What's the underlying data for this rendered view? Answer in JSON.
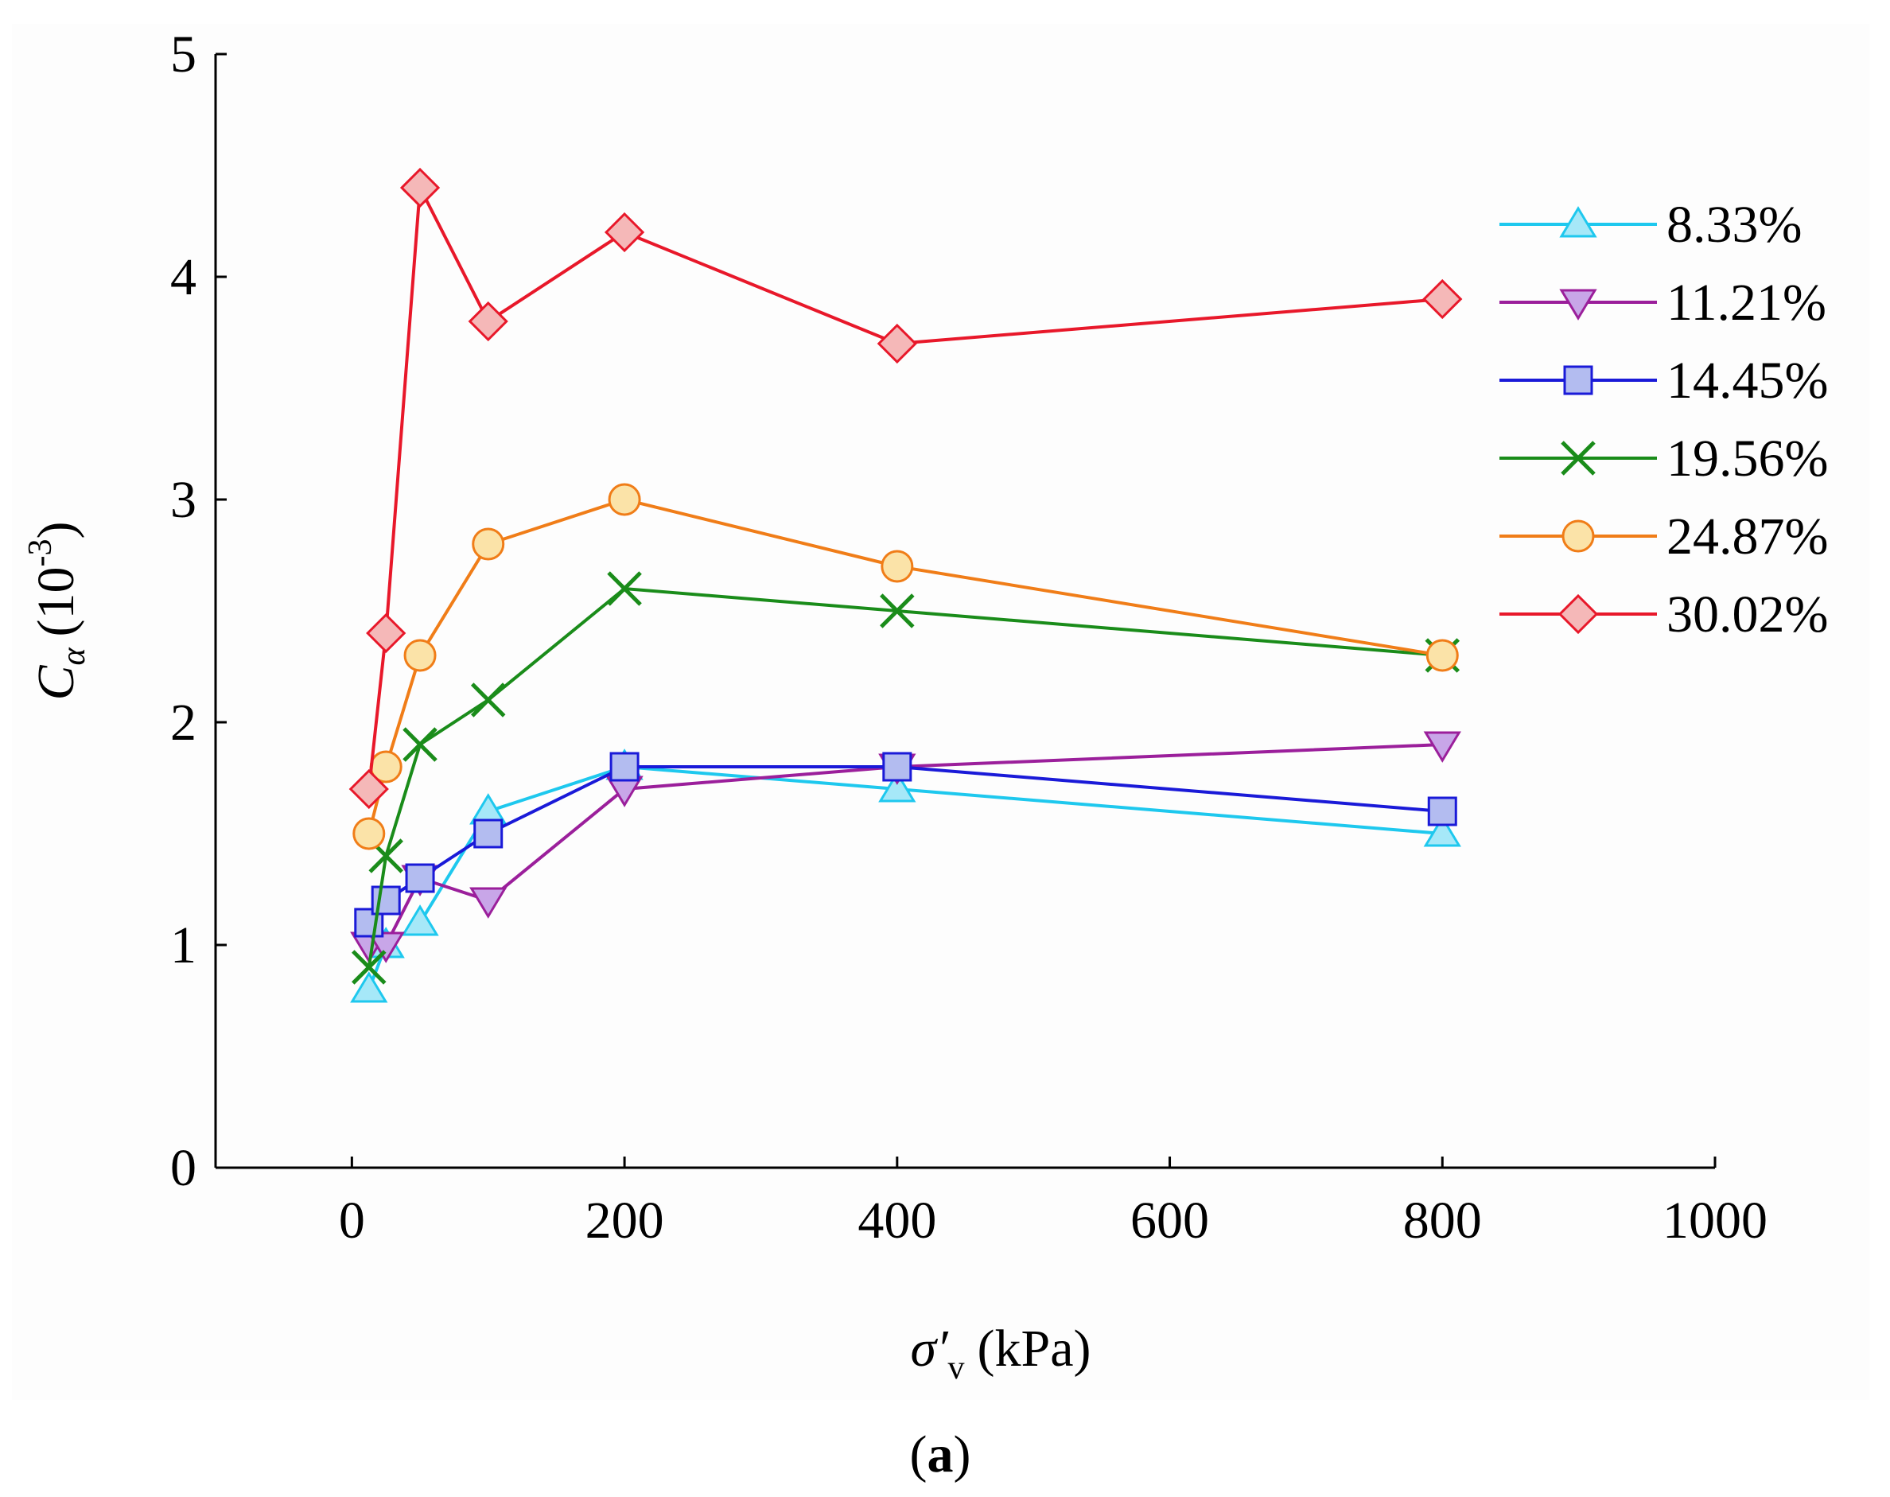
{
  "chart_data": {
    "type": "line",
    "caption_open": "(",
    "caption_letter": "a",
    "caption_close": ")",
    "xlabel": {
      "symbol": "σ′",
      "subscript": "v",
      "unit": "(kPa)"
    },
    "ylabel": {
      "symbol": "C",
      "subscript": "α",
      "unit_open": "(10",
      "superscript": "-3",
      "unit_close": ")"
    },
    "xlim": [
      -100,
      1000
    ],
    "ylim": [
      0,
      5
    ],
    "xticks": [
      0,
      200,
      400,
      600,
      800,
      1000
    ],
    "yticks": [
      0,
      1,
      2,
      3,
      4,
      5
    ],
    "xtick_labels": [
      "0",
      "200",
      "400",
      "600",
      "800",
      "1000"
    ],
    "ytick_labels": [
      "0",
      "1",
      "2",
      "3",
      "4",
      "5"
    ],
    "legend_position": "right",
    "series": [
      {
        "name": "8.33%",
        "color": "#1ec8ee",
        "fill": "#a6e8f8",
        "marker": "triangle-up",
        "x": [
          12.5,
          25,
          50,
          100,
          200,
          400,
          800
        ],
        "y": [
          0.8,
          1.0,
          1.1,
          1.6,
          1.8,
          1.7,
          1.5
        ]
      },
      {
        "name": "11.21%",
        "color": "#9b1f9b",
        "fill": "#c8a6e8",
        "marker": "triangle-down",
        "x": [
          12.5,
          25,
          50,
          100,
          200,
          400,
          800
        ],
        "y": [
          1.0,
          1.0,
          1.3,
          1.2,
          1.7,
          1.8,
          1.9
        ]
      },
      {
        "name": "14.45%",
        "color": "#1a1ad8",
        "fill": "#b3bcf0",
        "marker": "square",
        "x": [
          12.5,
          25,
          50,
          100,
          200,
          400,
          800
        ],
        "y": [
          1.1,
          1.2,
          1.3,
          1.5,
          1.8,
          1.8,
          1.6
        ]
      },
      {
        "name": "19.56%",
        "color": "#1a8c1a",
        "fill": "none",
        "marker": "x",
        "x": [
          12.5,
          25,
          50,
          100,
          200,
          400,
          800
        ],
        "y": [
          0.9,
          1.4,
          1.9,
          2.1,
          2.6,
          2.5,
          2.3
        ]
      },
      {
        "name": "24.87%",
        "color": "#f07d18",
        "fill": "#fbe3a8",
        "marker": "circle",
        "x": [
          12.5,
          25,
          50,
          100,
          200,
          400,
          800
        ],
        "y": [
          1.5,
          1.8,
          2.3,
          2.8,
          3.0,
          2.7,
          2.3
        ]
      },
      {
        "name": "30.02%",
        "color": "#e8182a",
        "fill": "#f5b8b8",
        "marker": "diamond",
        "x": [
          12.5,
          25,
          50,
          100,
          200,
          400,
          800
        ],
        "y": [
          1.7,
          2.4,
          4.4,
          3.8,
          4.2,
          3.7,
          3.9
        ]
      }
    ]
  }
}
